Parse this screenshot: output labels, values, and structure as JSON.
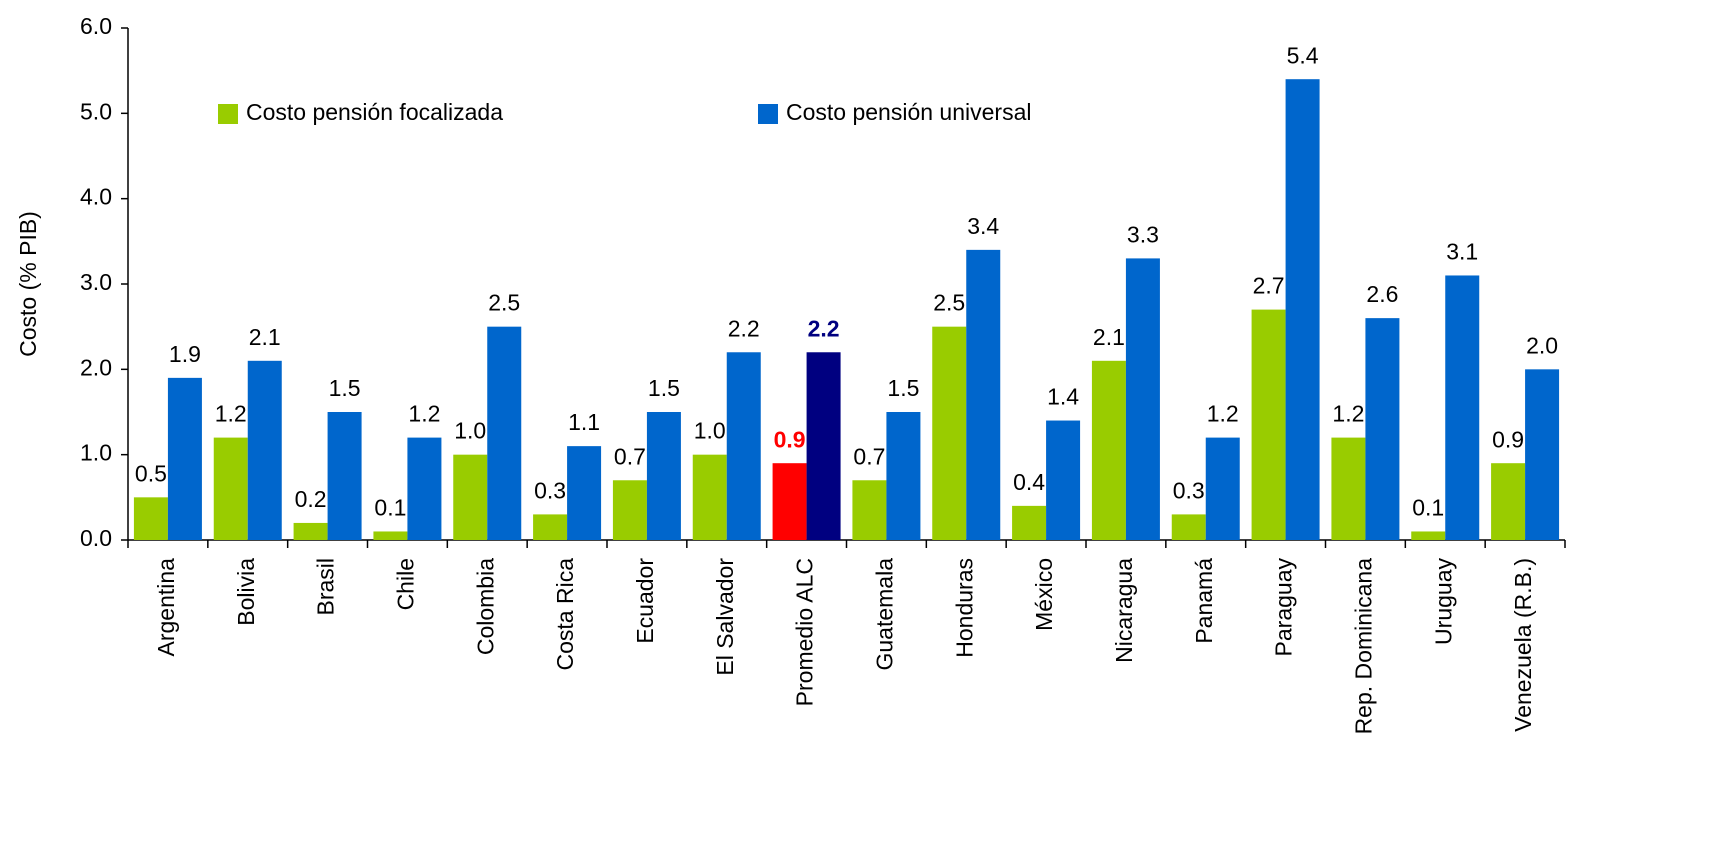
{
  "chart_data": {
    "type": "bar",
    "y_label": "Costo (% PIB)",
    "categories": [
      "Argentina",
      "Bolivia",
      "Brasil",
      "Chile",
      "Colombia",
      "Costa Rica",
      "Ecuador",
      "El Salvador",
      "Promedio ALC",
      "Guatemala",
      "Honduras",
      "México",
      "Nicaragua",
      "Panamá",
      "Paraguay",
      "Rep. Dominicana",
      "Uruguay",
      "Venezuela (R.B.)"
    ],
    "series": [
      {
        "name": "Costo pensión focalizada",
        "color": "#99cc00",
        "colors": [
          "#99cc00",
          "#99cc00",
          "#99cc00",
          "#99cc00",
          "#99cc00",
          "#99cc00",
          "#99cc00",
          "#99cc00",
          "#ff0000",
          "#99cc00",
          "#99cc00",
          "#99cc00",
          "#99cc00",
          "#99cc00",
          "#99cc00",
          "#99cc00",
          "#99cc00",
          "#99cc00"
        ],
        "values": [
          0.5,
          1.2,
          0.2,
          0.1,
          1.0,
          0.3,
          0.7,
          1.0,
          0.9,
          0.7,
          2.5,
          0.4,
          2.1,
          0.3,
          2.7,
          1.2,
          0.1,
          0.9
        ],
        "value_labels": [
          "0.5",
          "1.2",
          "0.2",
          "0.1",
          "1.0",
          "0.3",
          "0.7",
          "1.0",
          "0.9",
          "0.7",
          "2.5",
          "0.4",
          "2.1",
          "0.3",
          "2.7",
          "1.2",
          "0.1",
          "0.9"
        ]
      },
      {
        "name": "Costo pensión universal",
        "color": "#0066cc",
        "colors": [
          "#0066cc",
          "#0066cc",
          "#0066cc",
          "#0066cc",
          "#0066cc",
          "#0066cc",
          "#0066cc",
          "#0066cc",
          "#000080",
          "#0066cc",
          "#0066cc",
          "#0066cc",
          "#0066cc",
          "#0066cc",
          "#0066cc",
          "#0066cc",
          "#0066cc",
          "#0066cc"
        ],
        "values": [
          1.9,
          2.1,
          1.5,
          1.2,
          2.5,
          1.1,
          1.5,
          2.2,
          2.2,
          1.5,
          3.4,
          1.4,
          3.3,
          1.2,
          5.4,
          2.6,
          3.1,
          2.0
        ],
        "value_labels": [
          "1.9",
          "2.1",
          "1.5",
          "1.2",
          "2.5",
          "1.1",
          "1.5",
          "2.2",
          "2.2",
          "1.5",
          "3.4",
          "1.4",
          "3.3",
          "1.2",
          "5.4",
          "2.6",
          "3.1",
          "2.0"
        ]
      }
    ],
    "ylim": [
      0,
      6
    ],
    "yticks": [
      {
        "value": 0,
        "label": "0.0"
      },
      {
        "value": 1,
        "label": "1.0"
      },
      {
        "value": 2,
        "label": "2.0"
      },
      {
        "value": 3,
        "label": "3.0"
      },
      {
        "value": 4,
        "label": "4.0"
      },
      {
        "value": 5,
        "label": "5.0"
      },
      {
        "value": 6,
        "label": "6.0"
      }
    ],
    "grid": false
  }
}
